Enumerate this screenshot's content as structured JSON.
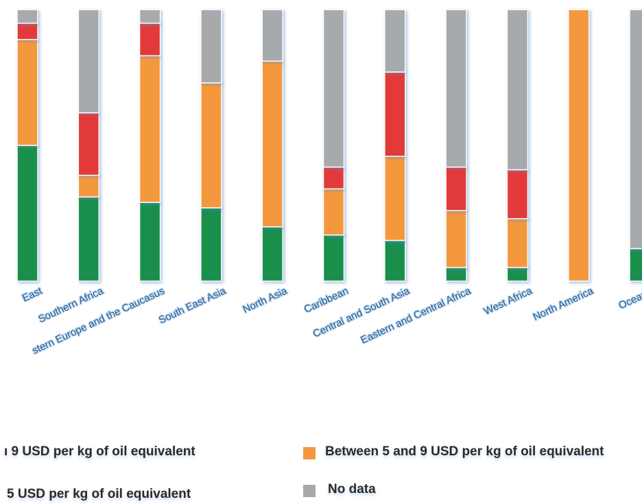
{
  "chart_data": {
    "type": "bar",
    "stacked": true,
    "unit": "percent",
    "ylim": [
      0,
      100
    ],
    "categories": [
      "East",
      "Southern Africa",
      "stern Europe and the Caucasus",
      "South East Asia",
      "North Asia",
      "Caribbean",
      "Central and South Asia",
      "Eastern and Central Africa",
      "West Africa",
      "North America",
      "Oceania"
    ],
    "series": [
      {
        "name": "",
        "color": "#1a8f4c",
        "values": [
          50,
          31,
          29,
          27,
          20,
          17,
          15,
          5,
          5,
          0,
          12
        ]
      },
      {
        "name": "Between 5 and 9 USD per kg of oil equivalent",
        "color": "#f4983e",
        "values": [
          39,
          8,
          54,
          46,
          61,
          17,
          31,
          21,
          18,
          100,
          0
        ]
      },
      {
        "name": "",
        "color": "#e23a3a",
        "values": [
          6,
          23,
          12,
          0,
          0,
          8,
          31,
          16,
          18,
          0,
          0
        ]
      },
      {
        "name": "No data",
        "color": "#a7aaad",
        "values": [
          5,
          38,
          5,
          27,
          19,
          58,
          23,
          58,
          59,
          0,
          88
        ]
      }
    ]
  },
  "legend": {
    "items": [
      {
        "label": "ı 9 USD per kg of oil equivalent",
        "color": "#e23a3a"
      },
      {
        "label": "Between 5 and 9 USD per kg of oil equivalent",
        "color": "#f4983e"
      },
      {
        "label": "5 USD per kg of oil equivalent",
        "color": "#1a8f4c"
      },
      {
        "label": "No data",
        "color": "#a7aaad"
      }
    ]
  }
}
